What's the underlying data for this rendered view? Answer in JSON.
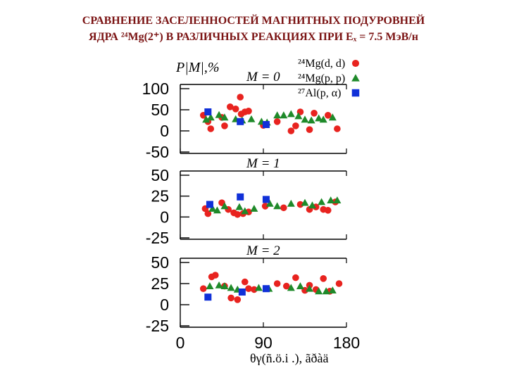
{
  "title": {
    "line1": "СРАВНЕНИЕ ЗАСЕЛЕННОСТЕЙ МАГНИТНЫХ ПОДУРОВНЕЙ",
    "line2": "ЯДРА ²⁴Mg(2⁺) В РАЗЛИЧНЫХ РЕАКЦИЯХ ПРИ Eₓ = 7.5 МэВ/н"
  },
  "chart_data": {
    "type": "scatter",
    "ylabel": "P|M|,%",
    "xlabel": "θγ(ñ.ö.i .), ãðàä",
    "xlim": [
      0,
      180
    ],
    "xticks": [
      "0",
      "90",
      "180"
    ],
    "legend": {
      "placement": "top-right",
      "entries": [
        {
          "label": "²⁴Mg(d, d)",
          "marker": "circle",
          "color": "#e8231f"
        },
        {
          "label": "²⁴Mg(p, p)",
          "marker": "triangle",
          "color": "#1f8a2a"
        },
        {
          "label": "²⁷Al(p, α)",
          "marker": "square",
          "color": "#1030d8"
        }
      ]
    },
    "panels": [
      {
        "label": "M = 0",
        "ylim": [
          -50,
          100
        ],
        "yticks": [
          "100",
          "50",
          "0",
          "-50"
        ],
        "series": [
          {
            "marker": "circle",
            "color": "#e8231f",
            "points": [
              [
                25,
                37
              ],
              [
                30,
                22
              ],
              [
                33,
                5
              ],
              [
                45,
                32
              ],
              [
                48,
                12
              ],
              [
                54,
                57
              ],
              [
                60,
                52
              ],
              [
                65,
                80
              ],
              [
                66,
                40
              ],
              [
                70,
                45
              ],
              [
                74,
                47
              ],
              [
                90,
                13
              ],
              [
                105,
                22
              ],
              [
                120,
                0
              ],
              [
                125,
                12
              ],
              [
                130,
                45
              ],
              [
                140,
                3
              ],
              [
                145,
                42
              ],
              [
                160,
                37
              ],
              [
                170,
                5
              ]
            ]
          },
          {
            "marker": "triangle",
            "color": "#1f8a2a",
            "points": [
              [
                28,
                27
              ],
              [
                33,
                32
              ],
              [
                42,
                38
              ],
              [
                48,
                32
              ],
              [
                60,
                28
              ],
              [
                67,
                25
              ],
              [
                77,
                28
              ],
              [
                88,
                22
              ],
              [
                94,
                20
              ],
              [
                105,
                37
              ],
              [
                112,
                37
              ],
              [
                120,
                40
              ],
              [
                128,
                35
              ],
              [
                135,
                27
              ],
              [
                142,
                25
              ],
              [
                150,
                30
              ],
              [
                155,
                27
              ],
              [
                165,
                32
              ]
            ]
          },
          {
            "marker": "square",
            "color": "#1030d8",
            "points": [
              [
                30,
                45
              ],
              [
                65,
                22
              ],
              [
                93,
                15
              ]
            ]
          }
        ]
      },
      {
        "label": "M = 1",
        "ylim": [
          -25,
          50
        ],
        "yticks": [
          "50",
          "25",
          "0",
          "-25"
        ],
        "series": [
          {
            "marker": "circle",
            "color": "#e8231f",
            "points": [
              [
                27,
                10
              ],
              [
                30,
                4
              ],
              [
                45,
                17
              ],
              [
                52,
                9
              ],
              [
                58,
                5
              ],
              [
                62,
                3
              ],
              [
                68,
                4
              ],
              [
                74,
                6
              ],
              [
                92,
                13
              ],
              [
                112,
                11
              ],
              [
                130,
                15
              ],
              [
                140,
                9
              ],
              [
                147,
                12
              ],
              [
                155,
                9
              ],
              [
                160,
                8
              ],
              [
                168,
                18
              ]
            ]
          },
          {
            "marker": "triangle",
            "color": "#1f8a2a",
            "points": [
              [
                35,
                10
              ],
              [
                40,
                8
              ],
              [
                48,
                13
              ],
              [
                64,
                12
              ],
              [
                70,
                7
              ],
              [
                80,
                10
              ],
              [
                97,
                16
              ],
              [
                105,
                13
              ],
              [
                120,
                16
              ],
              [
                135,
                17
              ],
              [
                143,
                14
              ],
              [
                153,
                18
              ],
              [
                163,
                20
              ],
              [
                170,
                20
              ]
            ]
          },
          {
            "marker": "square",
            "color": "#1030d8",
            "points": [
              [
                32,
                15
              ],
              [
                65,
                24
              ],
              [
                93,
                21
              ]
            ]
          }
        ]
      },
      {
        "label": "M = 2",
        "ylim": [
          -25,
          50
        ],
        "yticks": [
          "50",
          "25",
          "0",
          "-25"
        ],
        "series": [
          {
            "marker": "circle",
            "color": "#e8231f",
            "points": [
              [
                25,
                19
              ],
              [
                34,
                33
              ],
              [
                38,
                35
              ],
              [
                48,
                22
              ],
              [
                55,
                8
              ],
              [
                62,
                6
              ],
              [
                70,
                27
              ],
              [
                74,
                19
              ],
              [
                80,
                18
              ],
              [
                105,
                25
              ],
              [
                115,
                22
              ],
              [
                125,
                32
              ],
              [
                135,
                17
              ],
              [
                140,
                23
              ],
              [
                147,
                18
              ],
              [
                155,
                31
              ],
              [
                162,
                16
              ],
              [
                172,
                25
              ]
            ]
          },
          {
            "marker": "triangle",
            "color": "#1f8a2a",
            "points": [
              [
                32,
                22
              ],
              [
                42,
                23
              ],
              [
                48,
                22
              ],
              [
                55,
                20
              ],
              [
                62,
                18
              ],
              [
                85,
                20
              ],
              [
                96,
                19
              ],
              [
                120,
                20
              ],
              [
                130,
                22
              ],
              [
                140,
                19
              ],
              [
                150,
                16
              ],
              [
                158,
                16
              ],
              [
                165,
                17
              ]
            ]
          },
          {
            "marker": "square",
            "color": "#1030d8",
            "points": [
              [
                30,
                9
              ],
              [
                67,
                15
              ],
              [
                93,
                19
              ]
            ]
          }
        ]
      }
    ]
  }
}
